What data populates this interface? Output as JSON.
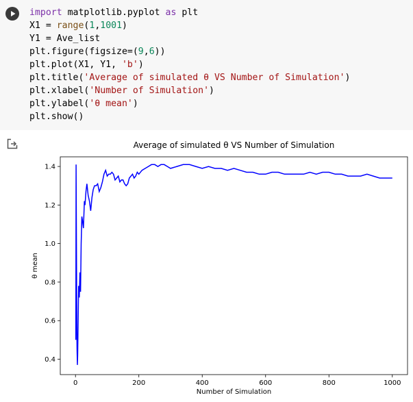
{
  "code_cell": {
    "lines": [
      [
        {
          "t": "import",
          "c": "kw"
        },
        {
          "t": " matplotlib.pyplot "
        },
        {
          "t": "as",
          "c": "kw"
        },
        {
          "t": " plt"
        }
      ],
      [
        {
          "t": "X1 = "
        },
        {
          "t": "range",
          "c": "fn"
        },
        {
          "t": "("
        },
        {
          "t": "1",
          "c": "num"
        },
        {
          "t": ","
        },
        {
          "t": "1001",
          "c": "num"
        },
        {
          "t": ")"
        }
      ],
      [
        {
          "t": "Y1 = Ave_list"
        }
      ],
      [
        {
          "t": "plt.figure(figsize=("
        },
        {
          "t": "9",
          "c": "num"
        },
        {
          "t": ","
        },
        {
          "t": "6",
          "c": "num"
        },
        {
          "t": "))"
        }
      ],
      [
        {
          "t": "plt.plot(X1, Y1, "
        },
        {
          "t": "'b'",
          "c": "str"
        },
        {
          "t": ")"
        }
      ],
      [
        {
          "t": "plt.title("
        },
        {
          "t": "'Average of simulated θ VS Number of Simulation'",
          "c": "str"
        },
        {
          "t": ")"
        }
      ],
      [
        {
          "t": "plt.xlabel("
        },
        {
          "t": "'Number of Simulation'",
          "c": "str"
        },
        {
          "t": ")"
        }
      ],
      [
        {
          "t": "plt.ylabel("
        },
        {
          "t": "'θ mean'",
          "c": "str"
        },
        {
          "t": ")"
        }
      ],
      [
        {
          "t": "plt.show()"
        }
      ]
    ]
  },
  "output": {
    "icon": "output-arrow-icon"
  },
  "chart_data": {
    "type": "line",
    "title": "Average of simulated θ VS Number of Simulation",
    "xlabel": "Number of Simulation",
    "ylabel": "θ mean",
    "xlim": [
      -48,
      1048
    ],
    "ylim": [
      0.32,
      1.45
    ],
    "xticks": [
      0,
      200,
      400,
      600,
      800,
      1000
    ],
    "yticks": [
      0.4,
      0.6,
      0.8,
      1.0,
      1.2,
      1.4
    ],
    "ytick_labels": [
      "0.4",
      "0.6",
      "0.8",
      "1.0",
      "1.2",
      "1.4"
    ],
    "grid": false,
    "series": [
      {
        "color": "#0000ff",
        "x": [
          1,
          2,
          3,
          4,
          5,
          6,
          7,
          8,
          9,
          10,
          12,
          14,
          16,
          18,
          20,
          22,
          25,
          28,
          30,
          33,
          36,
          40,
          44,
          48,
          52,
          56,
          60,
          65,
          70,
          75,
          80,
          85,
          90,
          95,
          100,
          105,
          110,
          115,
          120,
          125,
          130,
          135,
          140,
          145,
          150,
          155,
          160,
          165,
          170,
          175,
          180,
          185,
          190,
          195,
          200,
          210,
          220,
          230,
          240,
          250,
          260,
          270,
          280,
          290,
          300,
          320,
          340,
          360,
          380,
          400,
          420,
          440,
          460,
          480,
          500,
          520,
          540,
          560,
          580,
          600,
          620,
          640,
          660,
          680,
          700,
          720,
          740,
          760,
          780,
          800,
          820,
          840,
          860,
          880,
          900,
          920,
          940,
          960,
          980,
          1000
        ],
        "y": [
          0.5,
          1.41,
          1.0,
          0.6,
          0.45,
          0.37,
          0.42,
          0.55,
          0.68,
          0.78,
          0.72,
          0.85,
          0.75,
          1.0,
          1.14,
          1.12,
          1.08,
          1.22,
          1.2,
          1.27,
          1.31,
          1.25,
          1.22,
          1.17,
          1.24,
          1.28,
          1.3,
          1.3,
          1.31,
          1.27,
          1.29,
          1.32,
          1.36,
          1.38,
          1.35,
          1.36,
          1.36,
          1.37,
          1.36,
          1.33,
          1.34,
          1.35,
          1.32,
          1.33,
          1.33,
          1.31,
          1.3,
          1.31,
          1.34,
          1.35,
          1.36,
          1.34,
          1.35,
          1.37,
          1.36,
          1.38,
          1.39,
          1.4,
          1.41,
          1.41,
          1.4,
          1.41,
          1.41,
          1.4,
          1.39,
          1.4,
          1.41,
          1.41,
          1.4,
          1.39,
          1.4,
          1.39,
          1.39,
          1.38,
          1.39,
          1.38,
          1.37,
          1.37,
          1.36,
          1.36,
          1.37,
          1.37,
          1.36,
          1.36,
          1.36,
          1.36,
          1.37,
          1.36,
          1.37,
          1.37,
          1.36,
          1.36,
          1.35,
          1.35,
          1.35,
          1.36,
          1.35,
          1.34,
          1.34,
          1.34
        ]
      }
    ]
  }
}
